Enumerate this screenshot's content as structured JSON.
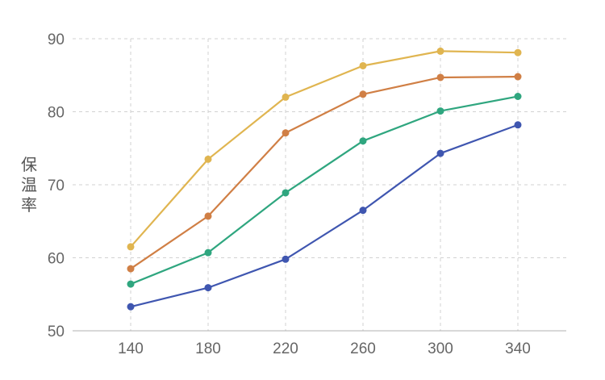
{
  "chart_data": {
    "type": "line",
    "title": "",
    "xlabel": "",
    "ylabel": "保温率",
    "x": [
      140,
      180,
      220,
      260,
      300,
      340
    ],
    "xlim": [
      110,
      365
    ],
    "ylim": [
      50,
      90
    ],
    "yticks": [
      50,
      60,
      70,
      80,
      90
    ],
    "grid": true,
    "legend": "none",
    "series": [
      {
        "color": "#e0b550",
        "values": [
          61.5,
          73.5,
          82.0,
          86.3,
          88.3,
          88.1
        ]
      },
      {
        "color": "#d07f45",
        "values": [
          58.5,
          65.7,
          77.1,
          82.4,
          84.7,
          84.8
        ]
      },
      {
        "color": "#2fa67f",
        "values": [
          56.4,
          60.7,
          68.9,
          76.0,
          80.1,
          82.1
        ]
      },
      {
        "color": "#3f56b0",
        "values": [
          53.3,
          55.9,
          59.8,
          66.5,
          74.3,
          78.2
        ]
      }
    ]
  }
}
